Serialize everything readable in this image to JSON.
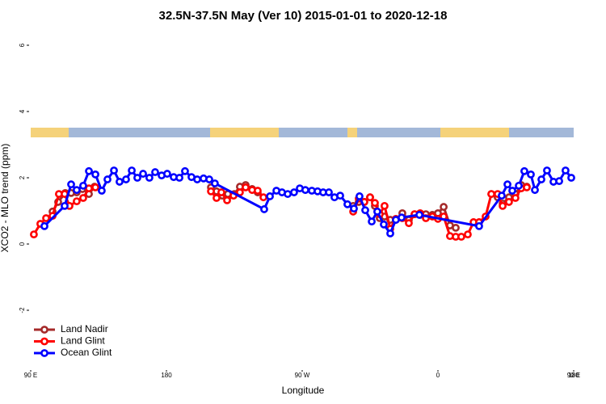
{
  "chart_data": {
    "type": "line",
    "title": "32.5N-37.5N May (Ver 10)   2015-01-01 to 2020-12-18",
    "x_label": "Longitude",
    "y_label": "XCO2 - MLO trend (ppm)",
    "xlim": [
      90,
      450
    ],
    "ylim": [
      -3.8,
      6.4
    ],
    "xticks": [
      {
        "value": 90,
        "label": "90 E"
      },
      180,
      {
        "value": 270,
        "label": "90 W"
      },
      {
        "value": 360,
        "label": "0"
      },
      {
        "value": 450,
        "label": "90 E"
      },
      {
        "value": 540,
        "label": "180"
      }
    ],
    "yticks": [
      -2,
      0,
      2,
      4,
      6
    ],
    "legend": "bottom-left",
    "series": [
      {
        "name": "Land Nadir",
        "color": "#a52a2a",
        "x": [
          104.5,
          108.2,
          112.9,
          116.8,
          120.5,
          124.3,
          128.6,
          132.3,
          null,
          209.5,
          213.2,
          217.0,
          220.7,
          225.0,
          228.7,
          232.5,
          236.8,
          240.5,
          null,
          303.8,
          307.5,
          311.2,
          315.0,
          318.2,
          321.4,
          324.6,
          328.4,
          332.1,
          336.4,
          340.7,
          344.5,
          348.2,
          352.0,
          356.3,
          360.0,
          363.8,
          368.0,
          371.8,
          null,
          395.4,
          399.6,
          402.9,
          407.1,
          411.4,
          415.2,
          418.9
        ],
        "values": [
          0.98,
          1.27,
          1.54,
          1.54,
          1.56,
          1.66,
          1.51,
          1.73,
          null,
          1.71,
          1.59,
          1.46,
          1.51,
          1.51,
          1.73,
          1.78,
          1.66,
          1.56,
          null,
          1.15,
          1.27,
          1.27,
          1.41,
          1.15,
          0.78,
          0.83,
          0.73,
          0.73,
          0.93,
          0.73,
          0.9,
          0.88,
          0.9,
          0.88,
          0.93,
          1.12,
          0.56,
          0.49,
          null,
          1.51,
          1.41,
          1.22,
          1.41,
          1.51,
          1.78,
          1.73
        ]
      },
      {
        "name": "Land Glint",
        "color": "#ff0000",
        "x": [
          92.1,
          96.4,
          100.2,
          104.5,
          108.7,
          112.5,
          115.7,
          120.5,
          124.8,
          128.6,
          132.9,
          null,
          209.5,
          213.2,
          216.4,
          220.2,
          224.5,
          228.7,
          232.5,
          236.8,
          240.5,
          244.3,
          null,
          303.8,
          307.5,
          311.2,
          315.0,
          318.2,
          321.4,
          324.6,
          328.4,
          332.1,
          336.4,
          340.7,
          344.5,
          348.2,
          352.0,
          356.3,
          360.0,
          363.8,
          368.0,
          371.8,
          375.5,
          379.8,
          383.6,
          387.3,
          391.6,
          395.4,
          399.6,
          402.9,
          407.1,
          411.4,
          415.2,
          418.9
        ],
        "values": [
          0.29,
          0.61,
          0.78,
          0.85,
          1.51,
          1.51,
          1.15,
          1.29,
          1.39,
          1.68,
          1.71,
          null,
          1.59,
          1.39,
          1.56,
          1.32,
          1.46,
          1.56,
          1.71,
          1.63,
          1.61,
          1.41,
          null,
          0.98,
          1.37,
          1.27,
          1.41,
          1.24,
          0.9,
          1.15,
          0.46,
          0.76,
          0.78,
          0.63,
          0.9,
          0.93,
          0.78,
          0.83,
          0.76,
          0.83,
          0.24,
          0.22,
          0.22,
          0.29,
          0.66,
          0.66,
          0.83,
          1.51,
          1.51,
          1.15,
          1.27,
          1.39,
          1.68,
          1.71
        ]
      },
      {
        "name": "Ocean Glint",
        "color": "#0000ff",
        "x": [
          99.1,
          112.5,
          116.8,
          120.5,
          124.8,
          128.6,
          132.9,
          137.1,
          140.9,
          145.2,
          148.9,
          153.2,
          157.0,
          160.7,
          164.5,
          168.7,
          172.5,
          176.8,
          180.5,
          184.8,
          188.6,
          192.3,
          196.6,
          200.4,
          204.6,
          208.4,
          212.1,
          244.8,
          248.6,
          252.9,
          256.6,
          260.4,
          264.6,
          268.4,
          272.1,
          276.4,
          280.2,
          283.9,
          287.7,
          291.4,
          295.2,
          300.0,
          304.3,
          308.0,
          311.8,
          316.1,
          319.8,
          324.1,
          328.4,
          332.1,
          335.9,
          347.7,
          387.3,
          402.3,
          406.1,
          409.3,
          413.6,
          417.3,
          421.6,
          424.3,
          428.6,
          432.3,
          436.6,
          440.4,
          444.6,
          448.4
        ],
        "values": [
          0.54,
          1.15,
          1.8,
          1.63,
          1.76,
          2.2,
          2.1,
          1.61,
          1.95,
          2.22,
          1.88,
          1.95,
          2.22,
          2.0,
          2.12,
          2.0,
          2.17,
          2.07,
          2.12,
          2.02,
          2.0,
          2.2,
          2.02,
          1.95,
          1.98,
          1.95,
          1.83,
          1.05,
          1.44,
          1.61,
          1.56,
          1.51,
          1.56,
          1.68,
          1.63,
          1.61,
          1.59,
          1.56,
          1.56,
          1.41,
          1.46,
          1.2,
          1.07,
          1.44,
          1.02,
          0.68,
          0.98,
          0.59,
          0.32,
          0.73,
          0.8,
          0.88,
          0.54,
          1.46,
          1.8,
          1.61,
          1.76,
          2.2,
          2.1,
          1.63,
          1.95,
          2.22,
          1.88,
          1.9,
          2.22,
          2.0
        ]
      }
    ]
  }
}
